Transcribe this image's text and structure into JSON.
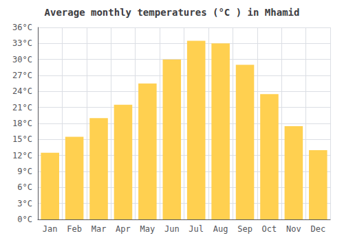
{
  "chart_data": {
    "type": "bar",
    "title": "Average monthly temperatures (°C ) in Mhamid",
    "categories": [
      "Jan",
      "Feb",
      "Mar",
      "Apr",
      "May",
      "Jun",
      "Jul",
      "Aug",
      "Sep",
      "Oct",
      "Nov",
      "Dec"
    ],
    "values": [
      12.5,
      15.5,
      19.0,
      21.5,
      25.5,
      30.0,
      33.5,
      33.0,
      29.0,
      23.5,
      17.5,
      13.0
    ],
    "color": "#FFD050",
    "ylim": [
      0,
      36
    ],
    "yticks": [
      {
        "value": 0,
        "label": "0°C"
      },
      {
        "value": 3,
        "label": "3°C"
      },
      {
        "value": 6,
        "label": "6°C"
      },
      {
        "value": 9,
        "label": "9°C"
      },
      {
        "value": 12,
        "label": "12°C"
      },
      {
        "value": 15,
        "label": "15°C"
      },
      {
        "value": 18,
        "label": "18°C"
      },
      {
        "value": 21,
        "label": "21°C"
      },
      {
        "value": 24,
        "label": "24°C"
      },
      {
        "value": 27,
        "label": "27°C"
      },
      {
        "value": 30,
        "label": "30°C"
      },
      {
        "value": 33,
        "label": "33°C"
      },
      {
        "value": 36,
        "label": "36°C"
      }
    ],
    "grid": true
  }
}
